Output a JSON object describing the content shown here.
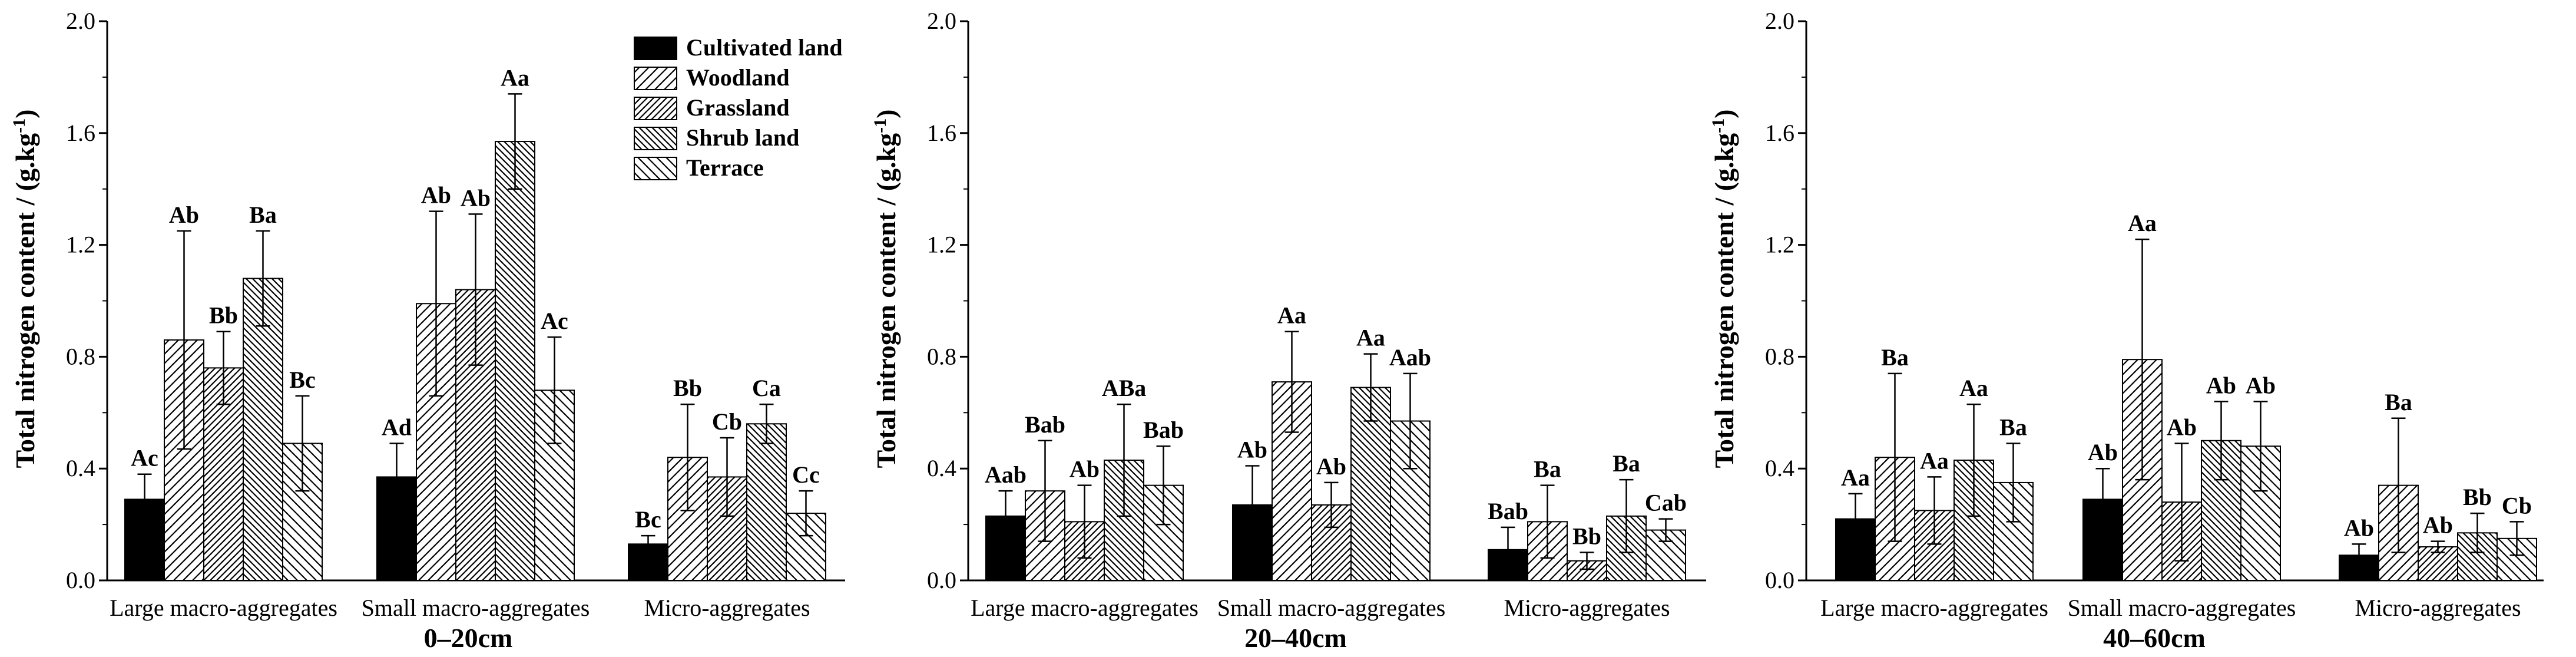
{
  "chart_data": {
    "type": "bar",
    "ylabel": "Total nitrogen content / (g.kg",
    "ylabel_sup": "-1",
    "ylabel_close": ")",
    "ylim": [
      0,
      2.0
    ],
    "yticks": [
      "0.0",
      "0.4",
      "0.8",
      "1.2",
      "1.6",
      "2.0"
    ],
    "categories": [
      "Large macro-aggregates",
      "Small macro-aggregates",
      "Micro-aggregates"
    ],
    "series_names": [
      "Cultivated land",
      "Woodland",
      "Grassland",
      "Shrub land",
      "Terrace"
    ],
    "legend_position": "top-right of first panel",
    "panels": [
      {
        "title": "0–20cm",
        "values": [
          [
            0.29,
            0.86,
            0.76,
            1.08,
            0.49
          ],
          [
            0.37,
            0.99,
            1.04,
            1.57,
            0.68
          ],
          [
            0.13,
            0.44,
            0.37,
            0.56,
            0.24
          ]
        ],
        "errors": [
          [
            0.09,
            0.39,
            0.13,
            0.17,
            0.17
          ],
          [
            0.12,
            0.33,
            0.27,
            0.17,
            0.19
          ],
          [
            0.03,
            0.19,
            0.14,
            0.07,
            0.08
          ]
        ],
        "letters": [
          [
            "Ac",
            "Ab",
            "Bb",
            "Ba",
            "Bc"
          ],
          [
            "Ad",
            "Ab",
            "Ab",
            "Aa",
            "Ac"
          ],
          [
            "Bc",
            "Bb",
            "Cb",
            "Ca",
            "Cc"
          ]
        ]
      },
      {
        "title": "20–40cm",
        "values": [
          [
            0.23,
            0.32,
            0.21,
            0.43,
            0.34
          ],
          [
            0.27,
            0.71,
            0.27,
            0.69,
            0.57
          ],
          [
            0.11,
            0.21,
            0.07,
            0.23,
            0.18
          ]
        ],
        "errors": [
          [
            0.09,
            0.18,
            0.13,
            0.2,
            0.14
          ],
          [
            0.14,
            0.18,
            0.08,
            0.12,
            0.17
          ],
          [
            0.08,
            0.13,
            0.03,
            0.13,
            0.04
          ]
        ],
        "letters": [
          [
            "Aab",
            "Bab",
            "Ab",
            "ABa",
            "Bab"
          ],
          [
            "Ab",
            "Aa",
            "Ab",
            "Aa",
            "Aab"
          ],
          [
            "Bab",
            "Ba",
            "Bb",
            "Ba",
            "Cab"
          ]
        ]
      },
      {
        "title": "40–60cm",
        "values": [
          [
            0.22,
            0.44,
            0.25,
            0.43,
            0.35
          ],
          [
            0.29,
            0.79,
            0.28,
            0.5,
            0.48
          ],
          [
            0.09,
            0.34,
            0.12,
            0.17,
            0.15
          ]
        ],
        "errors": [
          [
            0.09,
            0.3,
            0.12,
            0.2,
            0.14
          ],
          [
            0.11,
            0.43,
            0.21,
            0.14,
            0.16
          ],
          [
            0.04,
            0.24,
            0.02,
            0.07,
            0.06
          ]
        ],
        "letters": [
          [
            "Aa",
            "Ba",
            "Aa",
            "Aa",
            "Ba"
          ],
          [
            "Ab",
            "Aa",
            "Ab",
            "Ab",
            "Ab"
          ],
          [
            "Ab",
            "Ba",
            "Ab",
            "Bb",
            "Cb"
          ]
        ]
      }
    ]
  },
  "colors": {
    "cultivated_fill": "#000000",
    "hatch_fill": "#ffffff",
    "line": "#000000"
  }
}
